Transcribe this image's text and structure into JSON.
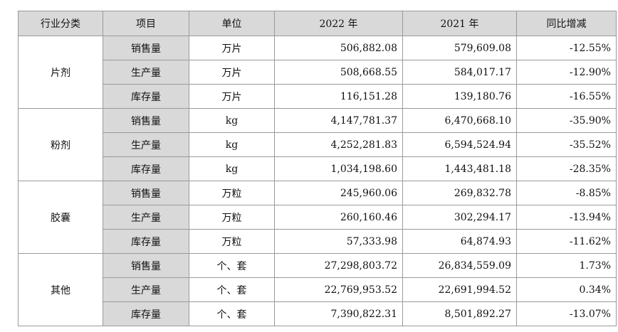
{
  "headers": [
    "行业分类",
    "项目",
    "单位",
    "2022 年",
    "2021 年",
    "同比增减"
  ],
  "groups": [
    {
      "category": "片剂",
      "rows": [
        {
          "item": "销售量",
          "unit": "万片",
          "y2022": "506,882.08",
          "y2021": "579,609.08",
          "yoy": "-12.55%"
        },
        {
          "item": "生产量",
          "unit": "万片",
          "y2022": "508,668.55",
          "y2021": "584,017.17",
          "yoy": "-12.90%"
        },
        {
          "item": "库存量",
          "unit": "万片",
          "y2022": "116,151.28",
          "y2021": "139,180.76",
          "yoy": "-16.55%"
        }
      ]
    },
    {
      "category": "粉剂",
      "rows": [
        {
          "item": "销售量",
          "unit": "kg",
          "y2022": "4,147,781.37",
          "y2021": "6,470,668.10",
          "yoy": "-35.90%"
        },
        {
          "item": "生产量",
          "unit": "kg",
          "y2022": "4,252,281.83",
          "y2021": "6,594,524.94",
          "yoy": "-35.52%"
        },
        {
          "item": "库存量",
          "unit": "kg",
          "y2022": "1,034,198.60",
          "y2021": "1,443,481.18",
          "yoy": "-28.35%"
        }
      ]
    },
    {
      "category": "胶囊",
      "rows": [
        {
          "item": "销售量",
          "unit": "万粒",
          "y2022": "245,960.06",
          "y2021": "269,832.78",
          "yoy": "-8.85%"
        },
        {
          "item": "生产量",
          "unit": "万粒",
          "y2022": "260,160.46",
          "y2021": "302,294.17",
          "yoy": "-13.94%"
        },
        {
          "item": "库存量",
          "unit": "万粒",
          "y2022": "57,333.98",
          "y2021": "64,874.93",
          "yoy": "-11.62%"
        }
      ]
    },
    {
      "category": "其他",
      "rows": [
        {
          "item": "销售量",
          "unit": "个、套",
          "y2022": "27,298,803.72",
          "y2021": "26,834,559.09",
          "yoy": "1.73%"
        },
        {
          "item": "生产量",
          "unit": "个、套",
          "y2022": "22,769,953.52",
          "y2021": "22,691,994.52",
          "yoy": "0.34%"
        },
        {
          "item": "库存量",
          "unit": "个、套",
          "y2022": "7,390,822.31",
          "y2021": "8,501,892.27",
          "yoy": "-13.07%"
        }
      ]
    }
  ]
}
